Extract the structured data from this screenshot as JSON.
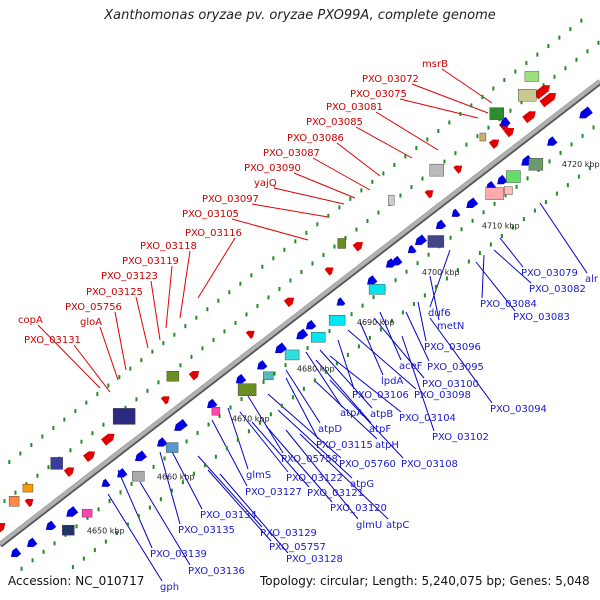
{
  "title": "Xanthomonas oryzae pv. oryzae PXO99A, complete genome",
  "footer": {
    "accession": "Accession: NC_010717",
    "topology": "Topology: circular; Length: 5,240,075 bp; Genes: 5,048"
  },
  "colors": {
    "forward_gene": "#e00000",
    "reverse_gene": "#0000e0",
    "tick": "#228b22",
    "axis": "#888888",
    "line_red": "#e00000",
    "line_blue": "#0000cc"
  },
  "scale_labels": [
    "4650 kbp",
    "4660 kbp",
    "4670 kbp",
    "4680 kbp",
    "4690 kbp",
    "4700 kbp",
    "4710 kbp",
    "4720 kbp"
  ],
  "red_labels": [
    "msrB",
    "PXO_03072",
    "PXO_03075",
    "PXO_03081",
    "PXO_03085",
    "PXO_03086",
    "PXO_03087",
    "PXO_03090",
    "yajQ",
    "PXO_03097",
    "PXO_03105",
    "PXO_03116",
    "PXO_03118",
    "PXO_03119",
    "PXO_03123",
    "PXO_03125",
    "PXO_05756",
    "gloA",
    "copA",
    "PXO_03131"
  ],
  "blue_labels": [
    "alr",
    "PXO_03079",
    "PXO_03082",
    "PXO_03084",
    "PXO_03083",
    "duf6",
    "metN",
    "PXO_03096",
    "PXO_03095",
    "aceF",
    "PXO_03100",
    "lpdA",
    "PXO_03098",
    "PXO_03094",
    "PXO_03106",
    "atpB",
    "PXO_03104",
    "atpA",
    "atpF",
    "PXO_03102",
    "atpD",
    "PXO_03115",
    "atpH",
    "PXO_03108",
    "PXO_05758",
    "PXO_05760",
    "glmS",
    "PXO_03122",
    "atpG",
    "PXO_03127",
    "PXO_03121",
    "PXO_03120",
    "glmU",
    "atpC",
    "PXO_03134",
    "PXO_03135",
    "PXO_03129",
    "PXO_05757",
    "PXO_03128",
    "PXO_03139",
    "PXO_03136",
    "gph"
  ]
}
